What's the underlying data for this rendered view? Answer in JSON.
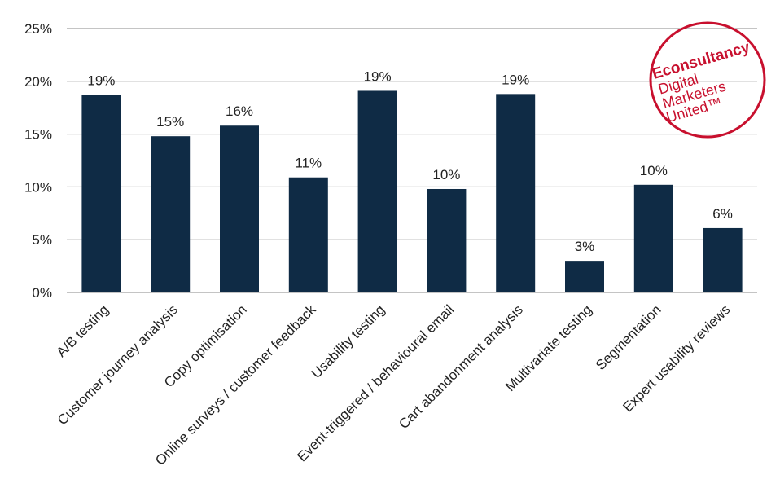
{
  "chart_data": {
    "type": "bar",
    "title": "",
    "xlabel": "",
    "ylabel": "",
    "categories": [
      "A/B testing",
      "Customer journey analysis",
      "Copy optimisation",
      "Online surveys / customer feedback",
      "Usability testing",
      "Event-triggered / behavioural email",
      "Cart abandonment analysis",
      "Multivariate testing",
      "Segmentation",
      "Expert usability reviews"
    ],
    "values": [
      18.7,
      14.8,
      15.8,
      10.9,
      19.1,
      9.8,
      18.8,
      3.0,
      10.2,
      6.1
    ],
    "data_labels": [
      "19%",
      "15%",
      "16%",
      "11%",
      "19%",
      "10%",
      "19%",
      "3%",
      "10%",
      "6%"
    ],
    "ylim": [
      0,
      25
    ],
    "yticks": [
      0,
      5,
      10,
      15,
      20,
      25
    ],
    "ytick_labels": [
      "0%",
      "5%",
      "10%",
      "15%",
      "20%",
      "25%"
    ],
    "grid": true,
    "bar_color": "#0f2b45",
    "grid_color": "#888888"
  },
  "logo": {
    "brand": "Econsultancy",
    "tagline_lines": [
      "Digital",
      "Marketers",
      "United™"
    ],
    "color": "#c8102e"
  }
}
